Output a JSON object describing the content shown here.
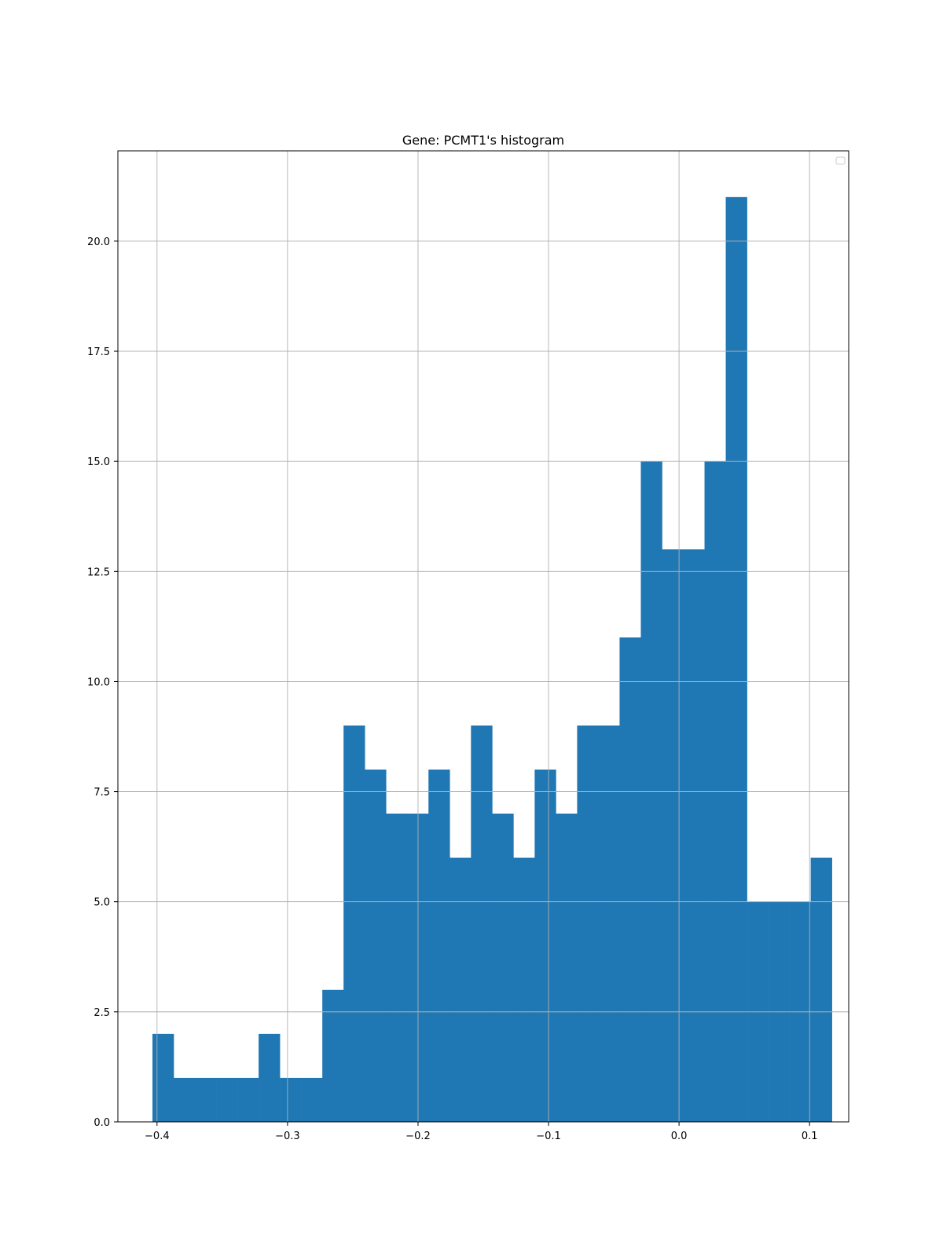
{
  "chart_data": {
    "type": "bar",
    "title": "Gene: PCMT1's histogram",
    "xlabel": "",
    "ylabel": "",
    "bar_color": "#1f77b4",
    "grid": true,
    "grid_color": "#b0b0b0",
    "legend": "top-right (empty)",
    "xlim": [
      -0.43,
      0.13
    ],
    "ylim": [
      0,
      22.05
    ],
    "x_ticks": [
      -0.4,
      -0.3,
      -0.2,
      -0.1,
      0.0,
      0.1
    ],
    "x_tick_labels": [
      "−0.4",
      "−0.3",
      "−0.2",
      "−0.1",
      "0.0",
      "0.1"
    ],
    "y_ticks": [
      0,
      2.5,
      5,
      7.5,
      10,
      12.5,
      15,
      17.5,
      20
    ],
    "y_tick_labels": [
      "0.0",
      "2.5",
      "5.0",
      "7.5",
      "10.0",
      "12.5",
      "15.0",
      "17.5",
      "20.0"
    ],
    "bin_start": -0.4035,
    "bin_width": 0.01627,
    "counts": [
      2,
      1,
      1,
      1,
      1,
      2,
      1,
      1,
      3,
      9,
      8,
      7,
      7,
      8,
      6,
      9,
      7,
      6,
      8,
      7,
      9,
      9,
      11,
      15,
      13,
      13,
      15,
      21,
      5,
      5,
      5,
      6
    ]
  }
}
